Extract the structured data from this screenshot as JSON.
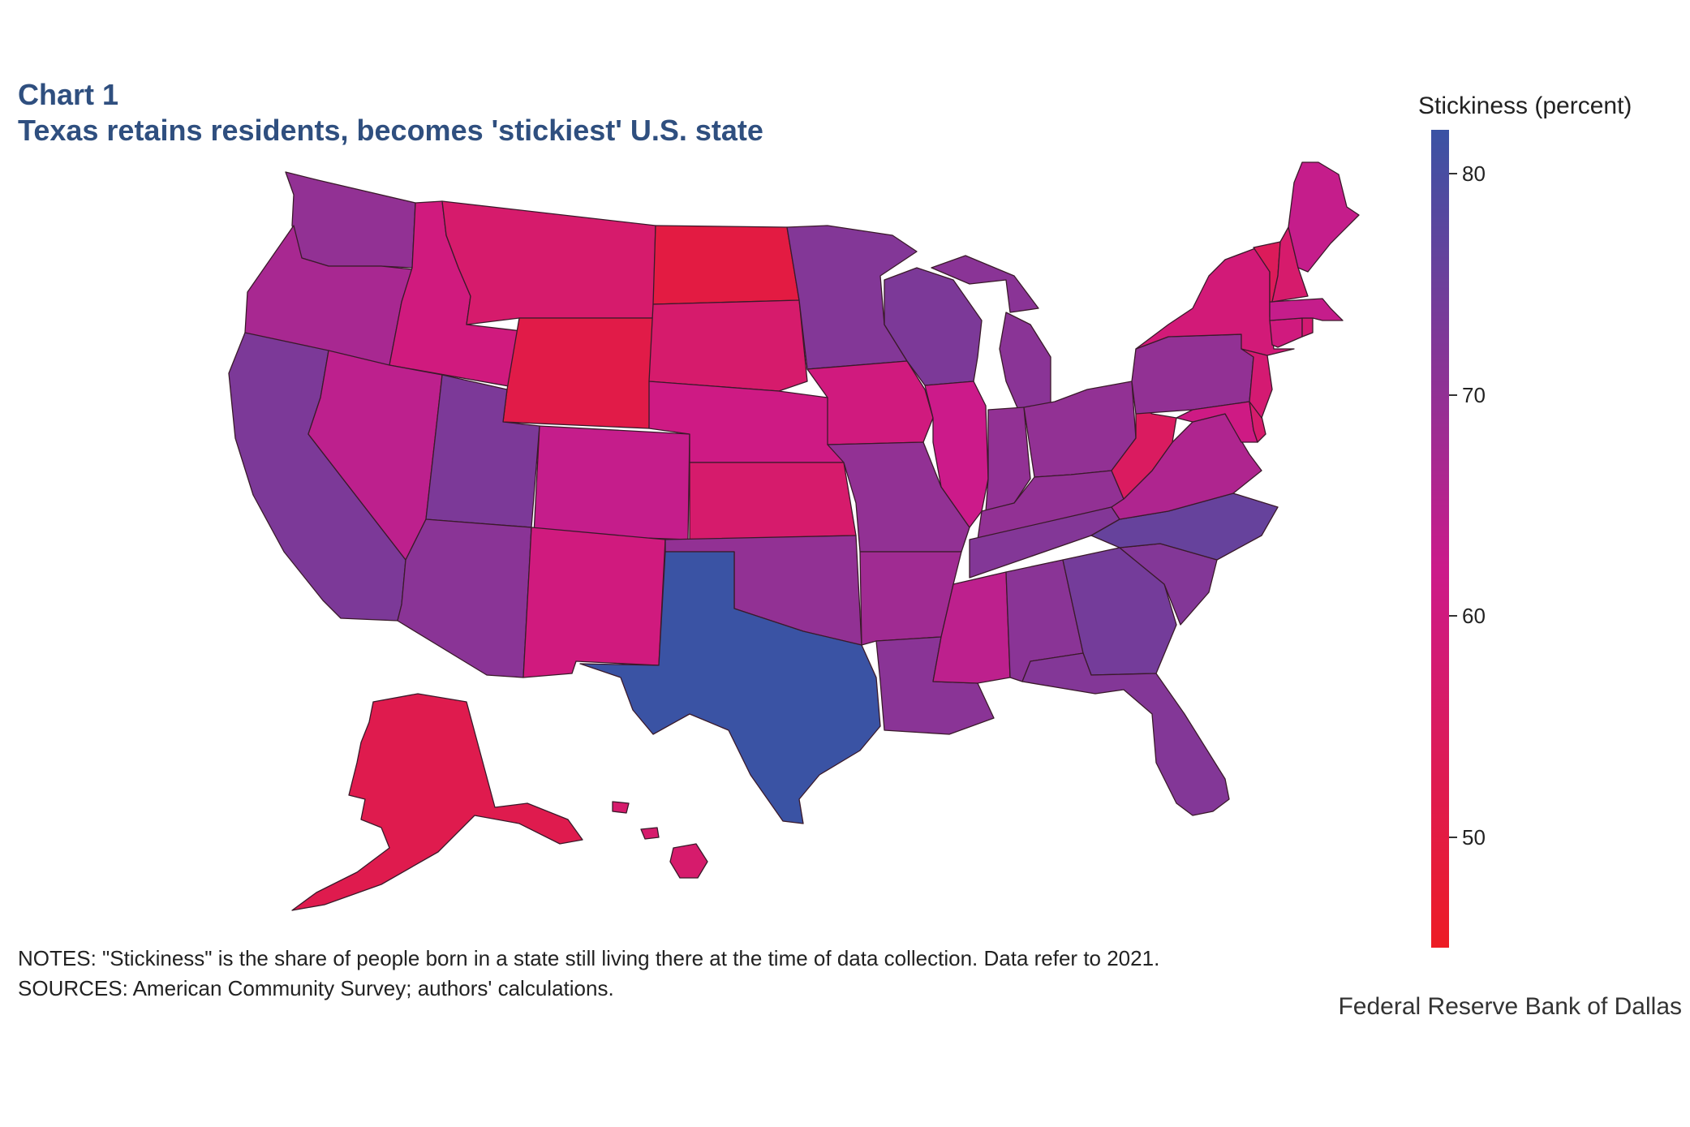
{
  "header": {
    "chart_label": "Chart 1",
    "title": "Texas retains residents, becomes 'stickiest' U.S. state"
  },
  "legend": {
    "title": "Stickiness (percent)",
    "min": 45,
    "max": 82,
    "ticks": [
      80,
      70,
      60,
      50
    ],
    "tick_labels": {
      "t0": "80",
      "t1": "70",
      "t2": "60",
      "t3": "50"
    },
    "color_low": "#ed1c24",
    "color_mid": "#cc1a8a",
    "color_mid_value": 62,
    "color_high": "#3a53a4"
  },
  "footer": {
    "notes": "NOTES: \"Stickiness\" is the share of people born in a state still living there at the time of data collection. Data refer to 2021.",
    "sources": "SOURCES: American Community Survey; authors' calculations.",
    "credit": "Federal Reserve Bank of Dallas"
  },
  "chart_data": {
    "type": "choropleth",
    "metric": "Stickiness (percent)",
    "year": 2021,
    "states": {
      "TX": 82,
      "NC": 76,
      "GA": 74,
      "CA": 73,
      "NV": 64,
      "UT": 73,
      "AZ": 71,
      "WA": 70,
      "OR": 67,
      "ID": 60,
      "MT": 57,
      "WY": 51,
      "ND": 50,
      "SD": 57,
      "NE": 61,
      "KS": 57,
      "CO": 63,
      "NM": 60,
      "OK": 70,
      "MN": 72,
      "IA": 60,
      "MO": 70,
      "AR": 68,
      "LA": 71,
      "WI": 73,
      "IL": 62,
      "MI": 71,
      "IN": 70,
      "OH": 70,
      "KY": 70,
      "TN": 72,
      "MS": 64,
      "AL": 71,
      "SC": 72,
      "FL": 72,
      "VA": 66,
      "WV": 55,
      "MD": 61,
      "DE": 57,
      "PA": 70,
      "NY": 59,
      "NJ": 58,
      "CT": 60,
      "RI": 58,
      "MA": 63,
      "VT": 54,
      "NH": 57,
      "ME": 63,
      "AK": 52,
      "HI": 57
    }
  }
}
